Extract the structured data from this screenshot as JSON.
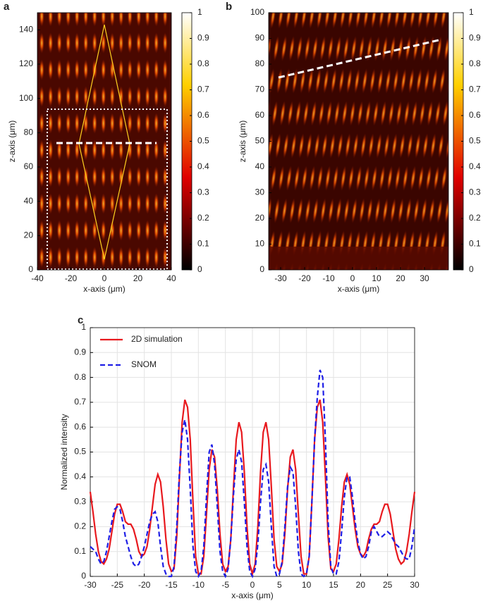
{
  "chart_data": [
    {
      "type": "heatmap",
      "panel_label": "a",
      "x_label": "x-axis (μm)",
      "y_label": "z-axis (μm)",
      "xlim": [
        -40,
        40
      ],
      "xticks": [
        -40,
        -20,
        0,
        20,
        40
      ],
      "ylim": [
        0,
        150
      ],
      "yticks": [
        0,
        20,
        40,
        60,
        80,
        100,
        120,
        140
      ],
      "colorbar": {
        "lim": [
          0,
          1
        ],
        "ticks": [
          0,
          0.1,
          0.2,
          0.3,
          0.4,
          0.5,
          0.6,
          0.7,
          0.8,
          0.9,
          1
        ]
      }
    },
    {
      "type": "heatmap",
      "panel_label": "b",
      "x_label": "x-axis (μm)",
      "y_label": "z-axis (μm)",
      "xlim": [
        -35,
        40
      ],
      "xticks": [
        -30,
        -20,
        -10,
        0,
        10,
        20,
        30
      ],
      "ylim": [
        0,
        100
      ],
      "yticks": [
        0,
        10,
        20,
        30,
        40,
        50,
        60,
        70,
        80,
        90,
        100
      ],
      "colorbar": {
        "lim": [
          0,
          1
        ],
        "ticks": [
          0,
          0.1,
          0.2,
          0.3,
          0.4,
          0.5,
          0.6,
          0.7,
          0.8,
          0.9,
          1
        ]
      }
    },
    {
      "type": "line",
      "panel_label": "c",
      "x_label": "x-axis (μm)",
      "y_label": "Normalized intensity",
      "xlim": [
        -30,
        30
      ],
      "xticks": [
        -30,
        -25,
        -20,
        -15,
        -10,
        -5,
        0,
        5,
        10,
        15,
        20,
        25,
        30
      ],
      "ylim": [
        0,
        1
      ],
      "yticks": [
        0,
        0.1,
        0.2,
        0.3,
        0.4,
        0.5,
        0.6,
        0.7,
        0.8,
        0.9,
        1
      ],
      "grid": true,
      "legend": "upper left",
      "x": [
        -30,
        -29.5,
        -29,
        -28.5,
        -28,
        -27.5,
        -27,
        -26.5,
        -26,
        -25.5,
        -25,
        -24.5,
        -24,
        -23.5,
        -23,
        -22.5,
        -22,
        -21.5,
        -21,
        -20.5,
        -20,
        -19.5,
        -19,
        -18.5,
        -18,
        -17.5,
        -17,
        -16.5,
        -16,
        -15.5,
        -15,
        -14.5,
        -14,
        -13.5,
        -13,
        -12.5,
        -12,
        -11.5,
        -11,
        -10.5,
        -10,
        -9.5,
        -9,
        -8.5,
        -8,
        -7.5,
        -7,
        -6.5,
        -6,
        -5.5,
        -5,
        -4.5,
        -4,
        -3.5,
        -3,
        -2.5,
        -2,
        -1.5,
        -1,
        -0.5,
        0,
        0.5,
        1,
        1.5,
        2,
        2.5,
        3,
        3.5,
        4,
        4.5,
        5,
        5.5,
        6,
        6.5,
        7,
        7.5,
        8,
        8.5,
        9,
        9.5,
        10,
        10.5,
        11,
        11.5,
        12,
        12.5,
        13,
        13.5,
        14,
        14.5,
        15,
        15.5,
        16,
        16.5,
        17,
        17.5,
        18,
        18.5,
        19,
        19.5,
        20,
        20.5,
        21,
        21.5,
        22,
        22.5,
        23,
        23.5,
        24,
        24.5,
        25,
        25.5,
        26,
        26.5,
        27,
        27.5,
        28,
        28.5,
        29,
        29.5,
        30
      ],
      "series": [
        {
          "name": "2D simulation",
          "color": "#e8191e",
          "dash": "solid",
          "values": [
            0.34,
            0.26,
            0.17,
            0.1,
            0.06,
            0.05,
            0.07,
            0.11,
            0.18,
            0.25,
            0.29,
            0.29,
            0.26,
            0.22,
            0.21,
            0.21,
            0.19,
            0.15,
            0.1,
            0.08,
            0.09,
            0.12,
            0.19,
            0.28,
            0.37,
            0.41,
            0.38,
            0.28,
            0.15,
            0.05,
            0.02,
            0.03,
            0.16,
            0.4,
            0.62,
            0.71,
            0.68,
            0.55,
            0.3,
            0.08,
            0.01,
            0.01,
            0.08,
            0.25,
            0.43,
            0.51,
            0.48,
            0.35,
            0.17,
            0.05,
            0.02,
            0.04,
            0.15,
            0.36,
            0.55,
            0.62,
            0.58,
            0.42,
            0.2,
            0.05,
            0.01,
            0.05,
            0.2,
            0.42,
            0.58,
            0.62,
            0.55,
            0.36,
            0.15,
            0.04,
            0.02,
            0.05,
            0.17,
            0.35,
            0.48,
            0.51,
            0.43,
            0.25,
            0.08,
            0.01,
            0.01,
            0.08,
            0.3,
            0.55,
            0.68,
            0.71,
            0.62,
            0.4,
            0.16,
            0.03,
            0.02,
            0.05,
            0.15,
            0.28,
            0.38,
            0.41,
            0.37,
            0.28,
            0.19,
            0.12,
            0.09,
            0.08,
            0.1,
            0.15,
            0.19,
            0.21,
            0.21,
            0.22,
            0.26,
            0.29,
            0.29,
            0.25,
            0.18,
            0.11,
            0.07,
            0.05,
            0.06,
            0.1,
            0.17,
            0.26,
            0.34
          ]
        },
        {
          "name": "SNOM",
          "color": "#1f1fe6",
          "dash": "dashed",
          "values": [
            0.12,
            0.11,
            0.1,
            0.07,
            0.05,
            0.06,
            0.1,
            0.16,
            0.22,
            0.27,
            0.28,
            0.27,
            0.22,
            0.16,
            0.12,
            0.08,
            0.05,
            0.04,
            0.05,
            0.08,
            0.12,
            0.17,
            0.22,
            0.25,
            0.26,
            0.22,
            0.12,
            0.04,
            0.01,
            0,
            0,
            0.04,
            0.2,
            0.42,
            0.58,
            0.63,
            0.55,
            0.35,
            0.12,
            0.02,
            0,
            0.02,
            0.12,
            0.32,
            0.5,
            0.53,
            0.45,
            0.28,
            0.1,
            0.02,
            0,
            0.03,
            0.15,
            0.33,
            0.47,
            0.51,
            0.46,
            0.3,
            0.12,
            0.02,
            0,
            0.03,
            0.13,
            0.3,
            0.43,
            0.45,
            0.38,
            0.2,
            0.04,
            0,
            0.01,
            0.06,
            0.2,
            0.36,
            0.44,
            0.42,
            0.28,
            0.1,
            0.01,
            0,
            0.01,
            0.08,
            0.3,
            0.55,
            0.72,
            0.83,
            0.8,
            0.55,
            0.22,
            0.04,
            0.01,
            0.01,
            0.06,
            0.18,
            0.32,
            0.4,
            0.4,
            0.32,
            0.22,
            0.14,
            0.09,
            0.07,
            0.08,
            0.12,
            0.18,
            0.2,
            0.18,
            0.16,
            0.16,
            0.17,
            0.18,
            0.17,
            0.15,
            0.13,
            0.12,
            0.1,
            0.08,
            0.07,
            0.07,
            0.12,
            0.2
          ]
        }
      ]
    }
  ]
}
